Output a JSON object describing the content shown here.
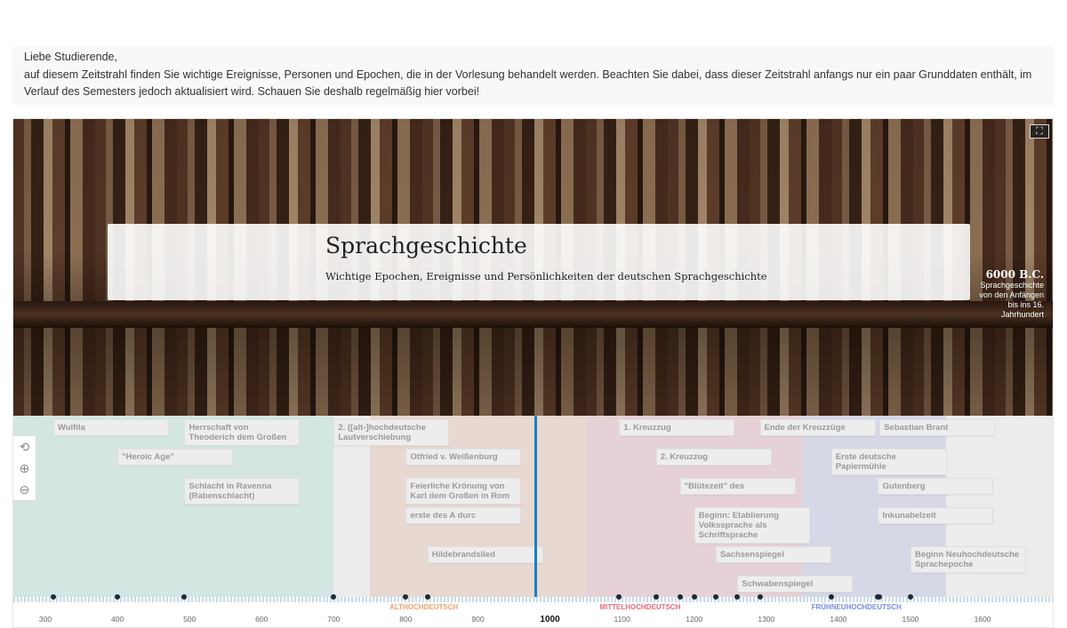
{
  "intro": {
    "line1": "Liebe Studierende,",
    "line2": "auf diesem Zeitstrahl finden Sie wichtige Ereignisse, Personen und Epochen, die in der Vorlesung behandelt werden. Beachten Sie dabei, dass dieser Zeitstrahl anfangs nur ein paar Grunddaten enthält, im Verlauf des Semesters jedoch aktualisiert wird. Schauen Sie deshalb regelmäßig hier vorbei!"
  },
  "slide": {
    "title": "Sprachgeschichte",
    "subtitle": "Wichtige Epochen, Ereignisse und Persönlichkeiten der deutschen Sprachgeschichte",
    "next_date": "6000 B.C.",
    "next_text": "Sprachgeschichte von den Anfängen bis ins 16. Jahrhundert"
  },
  "controls": {
    "fullscreen_icon": "fullscreen-icon",
    "back_icon": "arrow-back-icon",
    "zoom_in_icon": "zoom-in-icon",
    "zoom_out_icon": "zoom-out-icon"
  },
  "eras": [
    {
      "label": "",
      "start": 250,
      "end": 700,
      "color": "#d3e6e2"
    },
    {
      "label": "ALTHOCHDEUTSCH",
      "start": 750,
      "end": 1050,
      "color": "#e8d8d2",
      "text_color": "#f0a070"
    },
    {
      "label": "MITTELHOCHDEUTSCH",
      "start": 1050,
      "end": 1350,
      "color": "#e6d2d6",
      "text_color": "#e8697a"
    },
    {
      "label": "FRÜHNEUHOCHDEUTSCH",
      "start": 1350,
      "end": 1550,
      "color": "#d6d8e6",
      "text_color": "#7a8ae0"
    }
  ],
  "events": [
    {
      "label": "Herrschaft von Theoderich dem Großen",
      "year": 493,
      "row": 0
    },
    {
      "label": "Otfried v. Weißenburg",
      "year": 800,
      "row": 0
    },
    {
      "label": "\"Blütezeit\" des",
      "year": 1180,
      "row": 0
    },
    {
      "label": "Schwabenspiegel",
      "year": 1260,
      "row": 0
    },
    {
      "label": "Gutenberg",
      "year": 1455,
      "row": 0
    },
    {
      "label": "Beginn Neuhochdeutsche Sprachepoche",
      "year": 1500,
      "row": 0
    },
    {
      "label": "Wulfila",
      "year": 311,
      "row": 1
    },
    {
      "label": "Schlacht in Ravenna (Rabenschlacht)",
      "year": 493,
      "row": 1
    },
    {
      "label": "2. ([alt-]hochdeutsche Lautverschiebung",
      "year": 700,
      "row": 1
    },
    {
      "label": "Feierliche Krönung von Karl dem Großen in Rom",
      "year": 800,
      "row": 1
    },
    {
      "label": "1. Kreuzzug",
      "year": 1096,
      "row": 1
    },
    {
      "label": "Beginn: Etablierung Volkssprache als Schriftsprache",
      "year": 1200,
      "row": 1
    },
    {
      "label": "Ende der Kreuzzüge",
      "year": 1291,
      "row": 1
    },
    {
      "label": "Inkunabelzeit",
      "year": 1455,
      "row": 1
    },
    {
      "label": "\"Heroic Age\"",
      "year": 400,
      "row": 2
    },
    {
      "label": "erste des A durc",
      "year": 800,
      "row": 2
    },
    {
      "label": "Hildebrandslied",
      "year": 830,
      "row": 2
    },
    {
      "label": "2. Kreuzzug",
      "year": 1147,
      "row": 2
    },
    {
      "label": "Sachsenspiegel",
      "year": 1230,
      "row": 2
    },
    {
      "label": "Erste deutsche Papiermühle",
      "year": 1390,
      "row": 2
    },
    {
      "label": "Sebastian Brant",
      "year": 1457,
      "row": 2
    }
  ],
  "dots": [
    311,
    400,
    493,
    700,
    800,
    830,
    1096,
    1147,
    1180,
    1200,
    1230,
    1260,
    1291,
    1390,
    1455,
    1457,
    1500
  ],
  "axis": {
    "ticks": [
      300,
      400,
      500,
      600,
      700,
      800,
      900,
      1100,
      1200,
      1300,
      1400,
      1500,
      1600
    ],
    "current": "1000",
    "current_year": 980
  }
}
